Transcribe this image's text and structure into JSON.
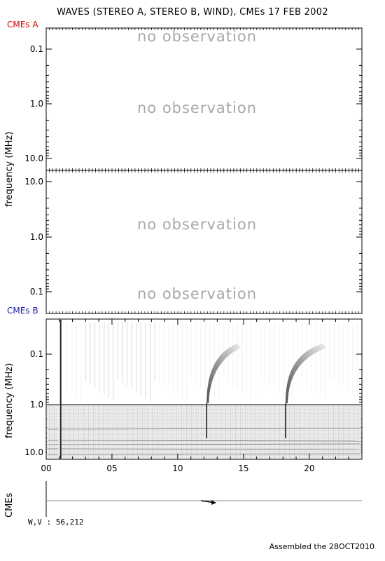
{
  "title": "WAVES (STEREO A, STEREO B, WIND), CMEs  17 FEB 2002",
  "labels": {
    "cmes_a": "CMEs A",
    "cmes_b": "CMEs B",
    "ylabel": "frequency (MHz)",
    "cmes_axis": "CMEs",
    "wv": "W,V :  56,212",
    "assembled": "Assembled the 28OCT2010"
  },
  "colors": {
    "cmes_a": "#d40000",
    "cmes_b": "#1a1aa8",
    "no_obs": "#a8a8a8"
  },
  "chart_data": [
    {
      "type": "heatmap",
      "panel": "STEREO A",
      "ylabel": "frequency (MHz)",
      "yscale": "log",
      "yticks": [
        "0.1",
        "1.0",
        "10.0"
      ],
      "annotations": [
        "no observation",
        "no observation"
      ]
    },
    {
      "type": "heatmap",
      "panel": "STEREO B",
      "yscale": "log",
      "yticks": [
        "10.0",
        "1.0",
        "0.1"
      ],
      "annotations": [
        "no observation",
        "no observation"
      ]
    },
    {
      "type": "heatmap",
      "panel": "WIND",
      "ylabel": "frequency (MHz)",
      "yscale": "log",
      "ylim": [
        0.02,
        13.8
      ],
      "yticks": [
        "0.1",
        "1.0",
        "10.0"
      ],
      "xlabel": "",
      "xlim": [
        0,
        24
      ],
      "xticks": [
        "00",
        "05",
        "10",
        "15",
        "20"
      ],
      "bursts": [
        {
          "time_hr": 1.1,
          "kind": "vertical"
        },
        {
          "time_hr": 12.2,
          "kind": "drifting",
          "end_time_hr": 14.5
        },
        {
          "time_hr": 18.2,
          "kind": "drifting",
          "end_time_hr": 21.0
        }
      ]
    },
    {
      "type": "scatter",
      "panel": "CMEs",
      "xlim": [
        0,
        24
      ],
      "points": [
        {
          "time_hr": 11.4,
          "marker": "arrow"
        }
      ]
    }
  ]
}
